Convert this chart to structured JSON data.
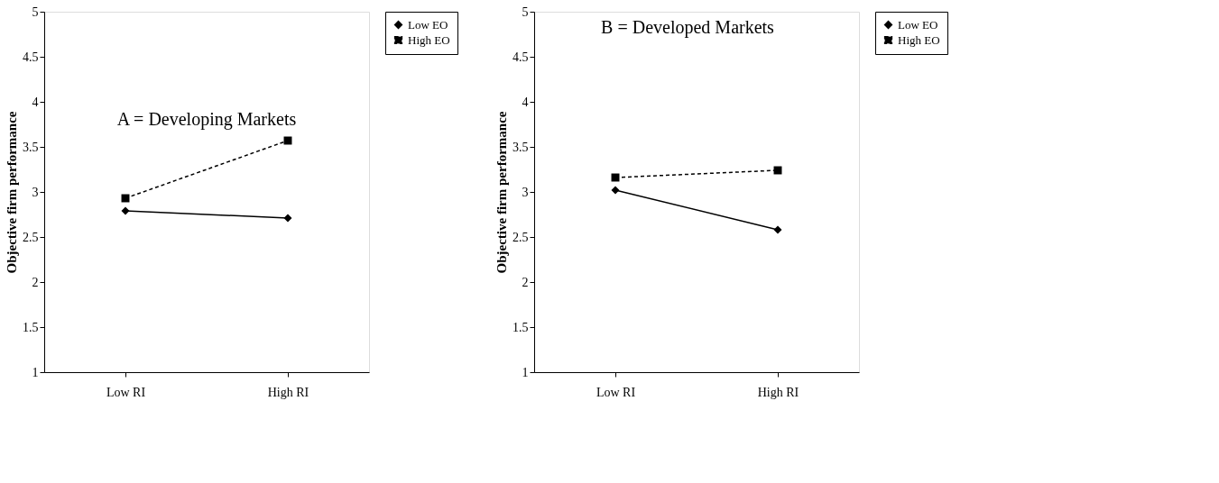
{
  "chart_data": [
    {
      "type": "line",
      "annotations": [
        "A = Developing Markets"
      ],
      "ylabel": "Objective firm performance",
      "categories": [
        "Low RI",
        "High RI"
      ],
      "ylim": [
        1,
        5
      ],
      "yticks": [
        1,
        1.5,
        2,
        2.5,
        3,
        3.5,
        4,
        4.5,
        5
      ],
      "grid": false,
      "legend": "right",
      "series": [
        {
          "name": "Low EO",
          "color": "#000000",
          "marker": "diamond",
          "line_style": "solid",
          "values": [
            2.79,
            2.71
          ]
        },
        {
          "name": "High EO",
          "color": "#000000",
          "marker": "square",
          "line_style": "dashed",
          "values": [
            2.93,
            3.57
          ]
        }
      ]
    },
    {
      "type": "line",
      "annotations": [
        "B = Developed Markets"
      ],
      "ylabel": "Objective firm performance",
      "categories": [
        "Low RI",
        "High RI"
      ],
      "ylim": [
        1,
        5
      ],
      "yticks": [
        1,
        1.5,
        2,
        2.5,
        3,
        3.5,
        4,
        4.5,
        5
      ],
      "grid": false,
      "legend": "right",
      "series": [
        {
          "name": "Low EO",
          "color": "#000000",
          "marker": "diamond",
          "line_style": "solid",
          "values": [
            3.02,
            2.58
          ]
        },
        {
          "name": "High EO",
          "color": "#000000",
          "marker": "square",
          "line_style": "dashed",
          "values": [
            3.16,
            3.24
          ]
        }
      ]
    }
  ]
}
